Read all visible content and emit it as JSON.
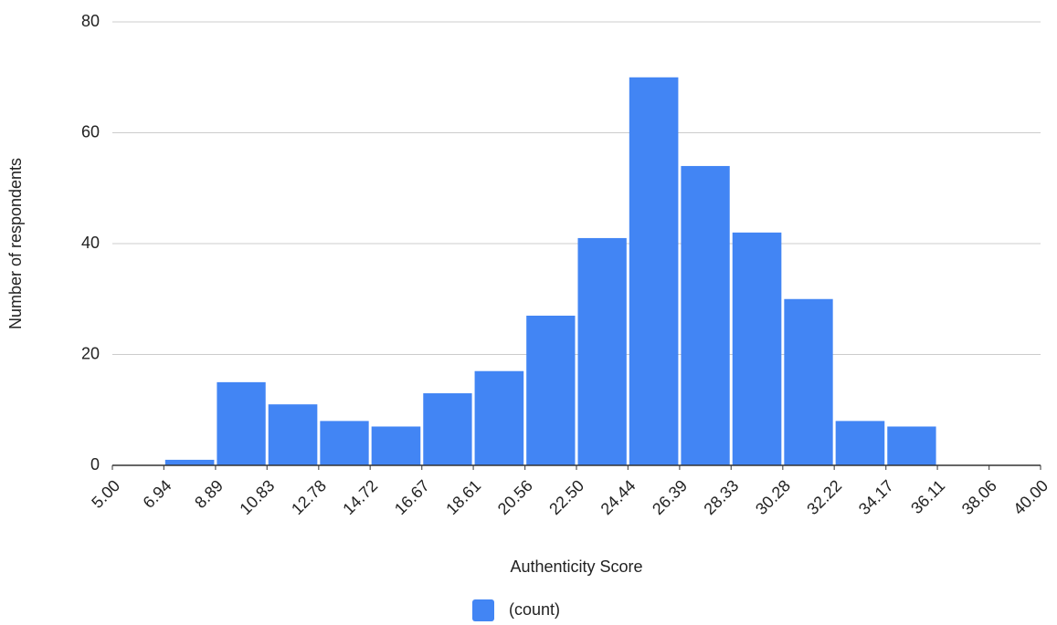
{
  "chart_data": {
    "type": "histogram",
    "x_label": "Authenticity Score",
    "y_label": "Number of respondents",
    "bins": [
      5,
      6.94,
      8.89,
      10.83,
      12.78,
      14.72,
      16.67,
      18.61,
      20.56,
      22.5,
      24.44,
      26.39,
      28.33,
      30.28,
      32.22,
      34.17,
      36.11,
      38.06,
      40
    ],
    "series": [
      {
        "name": "(count)",
        "color": "#4285f4",
        "values": [
          0,
          1,
          15,
          11,
          8,
          7,
          13,
          17,
          27,
          41,
          70,
          54,
          42,
          30,
          8,
          7,
          0,
          0
        ]
      }
    ],
    "xlim": [
      5,
      40
    ],
    "xticks": [
      {
        "value": 5,
        "label": "5.00"
      },
      {
        "value": 6.94,
        "label": "6.94"
      },
      {
        "value": 8.89,
        "label": "8.89"
      },
      {
        "value": 10.83,
        "label": "10.83"
      },
      {
        "value": 12.78,
        "label": "12.78"
      },
      {
        "value": 14.72,
        "label": "14.72"
      },
      {
        "value": 16.67,
        "label": "16.67"
      },
      {
        "value": 18.61,
        "label": "18.61"
      },
      {
        "value": 20.56,
        "label": "20.56"
      },
      {
        "value": 22.5,
        "label": "22.50"
      },
      {
        "value": 24.44,
        "label": "24.44"
      },
      {
        "value": 26.39,
        "label": "26.39"
      },
      {
        "value": 28.33,
        "label": "28.33"
      },
      {
        "value": 30.28,
        "label": "30.28"
      },
      {
        "value": 32.22,
        "label": "32.22"
      },
      {
        "value": 34.17,
        "label": "34.17"
      },
      {
        "value": 36.11,
        "label": "36.11"
      },
      {
        "value": 38.06,
        "label": "38.06"
      },
      {
        "value": 40,
        "label": "40.00"
      }
    ],
    "ylim": [
      0,
      80
    ],
    "yticks": [
      0,
      20,
      40,
      60,
      80
    ],
    "grid": true,
    "legend": "bottom"
  }
}
